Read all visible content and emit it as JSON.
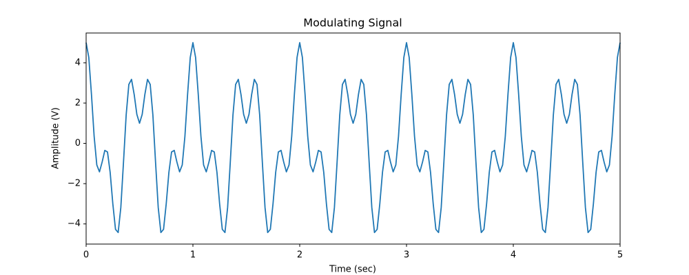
{
  "chart_data": {
    "type": "line",
    "title": "Modulating Signal",
    "x_label": "Time (sec)",
    "y_label": "Amplitude (V)",
    "color": "#1f77b4",
    "grid": false,
    "xlim": [
      0,
      5
    ],
    "ylim": [
      -5.0,
      5.48
    ],
    "xticks": [
      0,
      1,
      2,
      3,
      4,
      5
    ],
    "yticks": [
      {
        "value": -4,
        "label": "−4"
      },
      {
        "value": -2,
        "label": "−2"
      },
      0,
      2,
      4
    ],
    "x": [
      0,
      0.025,
      0.05,
      0.075,
      0.1,
      0.125,
      0.15,
      0.175,
      0.2,
      0.225,
      0.25,
      0.275,
      0.3,
      0.325,
      0.35,
      0.375,
      0.4,
      0.425,
      0.45,
      0.475,
      0.5,
      0.525,
      0.55,
      0.575,
      0.6,
      0.625,
      0.65,
      0.675,
      0.7,
      0.725,
      0.75,
      0.775,
      0.8,
      0.825,
      0.85,
      0.875,
      0.9,
      0.925,
      0.95,
      0.975,
      1,
      1.025,
      1.05,
      1.075,
      1.1,
      1.125,
      1.15,
      1.175,
      1.2,
      1.225,
      1.25,
      1.275,
      1.3,
      1.325,
      1.35,
      1.375,
      1.4,
      1.425,
      1.45,
      1.475,
      1.5,
      1.525,
      1.55,
      1.575,
      1.6,
      1.625,
      1.65,
      1.675,
      1.7,
      1.725,
      1.75,
      1.775,
      1.8,
      1.825,
      1.85,
      1.875,
      1.9,
      1.925,
      1.95,
      1.975,
      2,
      2.025,
      2.05,
      2.075,
      2.1,
      2.125,
      2.15,
      2.175,
      2.2,
      2.225,
      2.25,
      2.275,
      2.3,
      2.325,
      2.35,
      2.375,
      2.4,
      2.425,
      2.45,
      2.475,
      2.5,
      2.525,
      2.55,
      2.575,
      2.6,
      2.625,
      2.65,
      2.675,
      2.7,
      2.725,
      2.75,
      2.775,
      2.8,
      2.825,
      2.85,
      2.875,
      2.9,
      2.925,
      2.95,
      2.975,
      3,
      3.025,
      3.05,
      3.075,
      3.1,
      3.125,
      3.15,
      3.175,
      3.2,
      3.225,
      3.25,
      3.275,
      3.3,
      3.325,
      3.35,
      3.375,
      3.4,
      3.425,
      3.45,
      3.475,
      3.5,
      3.525,
      3.55,
      3.575,
      3.6,
      3.625,
      3.65,
      3.675,
      3.7,
      3.725,
      3.75,
      3.775,
      3.8,
      3.825,
      3.85,
      3.875,
      3.9,
      3.925,
      3.95,
      3.975,
      4,
      4.025,
      4.05,
      4.075,
      4.1,
      4.125,
      4.15,
      4.175,
      4.2,
      4.225,
      4.25,
      4.275,
      4.3,
      4.325,
      4.35,
      4.375,
      4.4,
      4.425,
      4.45,
      4.475,
      4.5,
      4.525,
      4.55,
      4.575,
      4.6,
      4.625,
      4.65,
      4.675,
      4.7,
      4.725,
      4.75,
      4.775,
      4.8,
      4.825,
      4.85,
      4.875,
      4.9,
      4.925,
      4.95,
      4.975,
      5
    ],
    "values": [
      5,
      4.267,
      2.427,
      0.349,
      -1.073,
      -1.414,
      -0.927,
      -0.349,
      -0.427,
      -1.439,
      -3,
      -4.267,
      -4.427,
      -3.177,
      -0.927,
      1.414,
      2.927,
      3.177,
      2.427,
      1.439,
      1,
      1.439,
      2.427,
      3.177,
      2.927,
      1.414,
      -0.927,
      -3.177,
      -4.427,
      -4.267,
      -3,
      -1.439,
      -0.427,
      -0.349,
      -0.927,
      -1.414,
      -1.073,
      0.349,
      2.427,
      4.267,
      5,
      4.267,
      2.427,
      0.349,
      -1.073,
      -1.414,
      -0.927,
      -0.349,
      -0.427,
      -1.439,
      -3,
      -4.267,
      -4.427,
      -3.177,
      -0.927,
      1.414,
      2.927,
      3.177,
      2.427,
      1.439,
      1,
      1.439,
      2.427,
      3.177,
      2.927,
      1.414,
      -0.927,
      -3.177,
      -4.427,
      -4.267,
      -3,
      -1.439,
      -0.427,
      -0.349,
      -0.927,
      -1.414,
      -1.073,
      0.349,
      2.427,
      4.267,
      5,
      4.267,
      2.427,
      0.349,
      -1.073,
      -1.414,
      -0.927,
      -0.349,
      -0.427,
      -1.439,
      -3,
      -4.267,
      -4.427,
      -3.177,
      -0.927,
      1.414,
      2.927,
      3.177,
      2.427,
      1.439,
      1,
      1.439,
      2.427,
      3.177,
      2.927,
      1.414,
      -0.927,
      -3.177,
      -4.427,
      -4.267,
      -3,
      -1.439,
      -0.427,
      -0.349,
      -0.927,
      -1.414,
      -1.073,
      0.349,
      2.427,
      4.267,
      5,
      4.267,
      2.427,
      0.349,
      -1.073,
      -1.414,
      -0.927,
      -0.349,
      -0.427,
      -1.439,
      -3,
      -4.267,
      -4.427,
      -3.177,
      -0.927,
      1.414,
      2.927,
      3.177,
      2.427,
      1.439,
      1,
      1.439,
      2.427,
      3.177,
      2.927,
      1.414,
      -0.927,
      -3.177,
      -4.427,
      -4.267,
      -3,
      -1.439,
      -0.427,
      -0.349,
      -0.927,
      -1.414,
      -1.073,
      0.349,
      2.427,
      4.267,
      5,
      4.267,
      2.427,
      0.349,
      -1.073,
      -1.414,
      -0.927,
      -0.349,
      -0.427,
      -1.439,
      -3,
      -4.267,
      -4.427,
      -3.177,
      -0.927,
      1.414,
      2.927,
      3.177,
      2.427,
      1.439,
      1,
      1.439,
      2.427,
      3.177,
      2.927,
      1.414,
      -0.927,
      -3.177,
      -4.427,
      -4.267,
      -3,
      -1.439,
      -0.427,
      -0.349,
      -0.927,
      -1.414,
      -1.073,
      0.349,
      2.427,
      4.267,
      5
    ]
  }
}
